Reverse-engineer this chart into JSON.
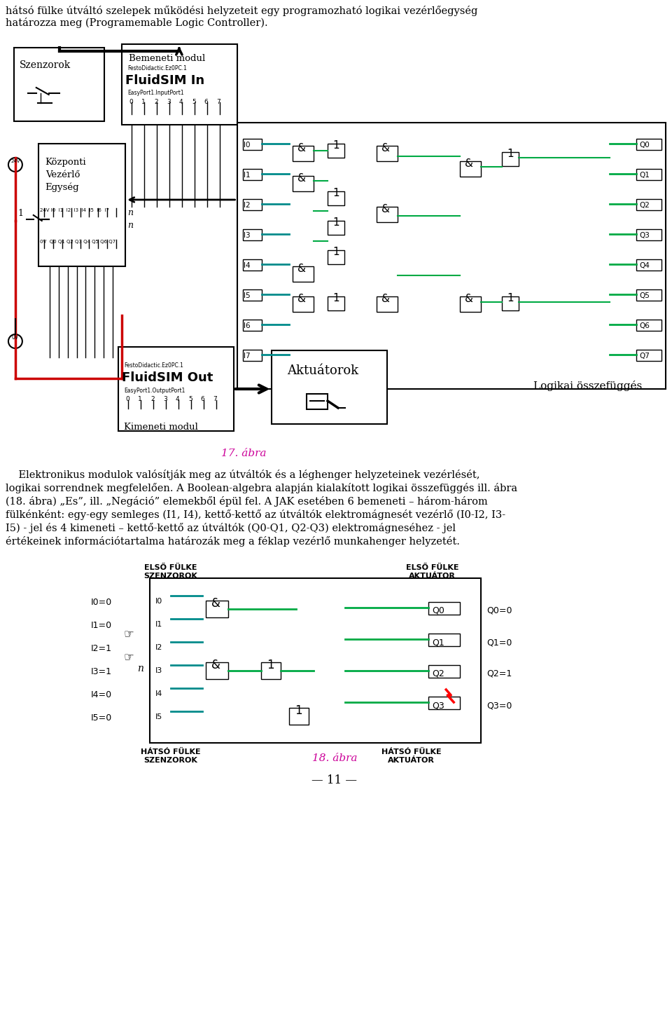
{
  "page_bg": "#ffffff",
  "top_text_line1": "hátsó fülke útváltó szelepek működési helyzeteit egy programozható logikai vezérlőegység",
  "top_text_line2": "határozza meg (Programemable Logic Controller).",
  "fig17_caption": "17. ábra",
  "body_text_lines": [
    "    Elektronikus modulok valósítják meg az útváltók és a léghenger helyzeteinek vezérlését,",
    "logikai sorrendnek megfelelően. A Boolean-algebra alapján kialakított logikai összefüggés ill. ábra",
    "(18. ábra) „Es”, ill. „Negáció” elemekből épül fel. A JAK esetében 6 bemeneti – három-három",
    "fülkénként: egy-egy semleges (I1, I4), kettő-kettő az útváltók elektromágnesét vezérlő (I0-I2, I3-",
    "I5) - jel és 4 kimeneti – kettő-kettő az útváltók (Q0-Q1, Q2-Q3) elektromágneséhez - jel",
    "értékeinek információtartalma határozák meg a féklap vezérlő munkahenger helyzetét."
  ],
  "fig18_caption": "18. ábra",
  "page_num": "— 11 —",
  "text_color": "#000000",
  "caption_color": "#cc0099",
  "font_size_body": 10.5,
  "font_size_caption": 11,
  "labels_left_18": [
    "I0=0",
    "I1=0",
    "I2=1",
    "I3=1",
    "I4=0",
    "I5=0"
  ],
  "out_vals_18": [
    "Q0=0",
    "Q1=0",
    "Q2=1",
    "Q3=0"
  ],
  "teal": "#008B8B",
  "green": "#00AA44",
  "red": "#cc0000"
}
